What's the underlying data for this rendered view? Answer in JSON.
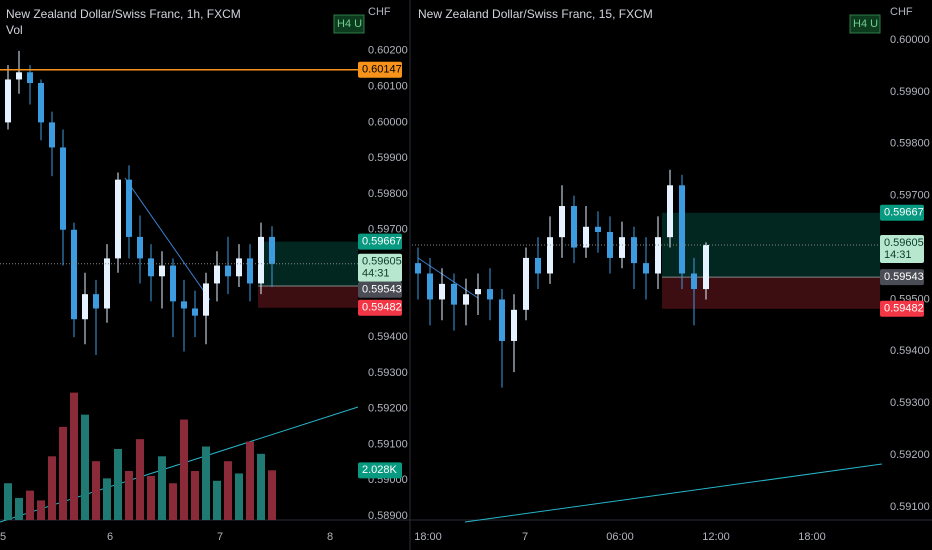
{
  "chart_data": [
    {
      "type": "candlestick",
      "title": "New Zealand Dollar/Swiss Franc, 1h, FXCM",
      "indicator": "Vol",
      "y_label": "CHF",
      "button": "H4 U",
      "ylim": [
        0.58889,
        0.60342
      ],
      "yticks": [
        {
          "value": 0.589,
          "label": "0.58900"
        },
        {
          "value": 0.59,
          "label": "0.59000"
        },
        {
          "value": 0.591,
          "label": "0.59100"
        },
        {
          "value": 0.592,
          "label": "0.59200"
        },
        {
          "value": 0.593,
          "label": "0.59300"
        },
        {
          "value": 0.594,
          "label": "0.59400"
        },
        {
          "value": 0.597,
          "label": "0.59700"
        },
        {
          "value": 0.598,
          "label": "0.59800"
        },
        {
          "value": 0.599,
          "label": "0.59900"
        },
        {
          "value": 0.6,
          "label": "0.60000"
        },
        {
          "value": 0.601,
          "label": "0.60100"
        },
        {
          "value": 0.602,
          "label": "0.60200"
        }
      ],
      "x_labels": [
        "5",
        "6",
        "7",
        "8"
      ],
      "up_color": "#e6f2ff",
      "down_color": "#3d9be0",
      "open": [
        0.6,
        0.6012,
        0.6014,
        0.6011,
        0.6,
        0.5993,
        0.597,
        0.5945,
        0.5952,
        0.5948,
        0.5962,
        0.5984,
        0.5968,
        0.5962,
        0.5957,
        0.596,
        0.595,
        0.5948,
        0.5946,
        0.5955,
        0.596,
        0.5957,
        0.5962,
        0.5955,
        0.5968
      ],
      "close": [
        0.6012,
        0.6014,
        0.6011,
        0.6,
        0.5993,
        0.597,
        0.5945,
        0.5952,
        0.5948,
        0.5962,
        0.5984,
        0.5968,
        0.5962,
        0.5957,
        0.596,
        0.595,
        0.5948,
        0.5946,
        0.5955,
        0.596,
        0.5957,
        0.5962,
        0.5955,
        0.5968,
        0.59605
      ],
      "high": [
        0.6016,
        0.602,
        0.6016,
        0.6012,
        0.6003,
        0.5998,
        0.5972,
        0.5958,
        0.5956,
        0.5966,
        0.5986,
        0.5988,
        0.5974,
        0.5966,
        0.5964,
        0.5962,
        0.5956,
        0.5953,
        0.5958,
        0.5964,
        0.5968,
        0.5966,
        0.5966,
        0.5972,
        0.5971
      ],
      "low": [
        0.5998,
        0.6008,
        0.6005,
        0.5995,
        0.5985,
        0.596,
        0.594,
        0.5938,
        0.5935,
        0.5944,
        0.5958,
        0.5962,
        0.5955,
        0.595,
        0.5948,
        0.594,
        0.5936,
        0.594,
        0.5938,
        0.595,
        0.5952,
        0.5954,
        0.595,
        0.5952,
        0.5954
      ],
      "volume": {
        "values": [
          1500,
          900,
          1200,
          800,
          2600,
          3800,
          5200,
          4300,
          2400,
          1700,
          2900,
          2000,
          3300,
          1800,
          2600,
          1500,
          4100,
          2000,
          3000,
          1600,
          2400,
          1900,
          3200,
          2700,
          2028
        ],
        "vlim": [
          0,
          6000
        ],
        "last_label": "2.028K",
        "up_color": "#1f7a73",
        "down_color": "#8b2b3a"
      },
      "levels": [
        {
          "value": 0.60147,
          "kind": "line",
          "color": "#f7931a"
        },
        {
          "value": 0.59667,
          "kind": "target",
          "color": "#089981"
        },
        {
          "value": 0.59543,
          "kind": "entry",
          "color": "#4a4d55"
        },
        {
          "value": 0.59482,
          "kind": "stop",
          "color": "#f23645"
        }
      ],
      "last_price": {
        "value": 0.59605,
        "countdown": "44:31"
      }
    },
    {
      "type": "candlestick",
      "title": "New Zealand Dollar/Swiss Franc, 15, FXCM",
      "y_label": "CHF",
      "button": "H4 U",
      "ylim": [
        0.59075,
        0.60077
      ],
      "yticks": [
        {
          "value": 0.591,
          "label": "0.59100"
        },
        {
          "value": 0.592,
          "label": "0.59200"
        },
        {
          "value": 0.593,
          "label": "0.59300"
        },
        {
          "value": 0.594,
          "label": "0.59400"
        },
        {
          "value": 0.595,
          "label": "0.59500"
        },
        {
          "value": 0.597,
          "label": "0.59700"
        },
        {
          "value": 0.598,
          "label": "0.59800"
        },
        {
          "value": 0.599,
          "label": "0.59900"
        },
        {
          "value": 0.6,
          "label": "0.60000"
        }
      ],
      "x_labels": [
        "18:00",
        "7",
        "06:00",
        "12:00",
        "18:00"
      ],
      "up_color": "#e6f2ff",
      "down_color": "#3d9be0",
      "open": [
        0.5957,
        0.5955,
        0.595,
        0.5953,
        0.5949,
        0.5951,
        0.5952,
        0.595,
        0.5942,
        0.5948,
        0.5958,
        0.5955,
        0.5962,
        0.5968,
        0.596,
        0.5964,
        0.5963,
        0.5958,
        0.5962,
        0.5957,
        0.5955,
        0.5962,
        0.5972,
        0.5955,
        0.5952
      ],
      "close": [
        0.5955,
        0.595,
        0.5953,
        0.5949,
        0.5951,
        0.5952,
        0.595,
        0.5942,
        0.5948,
        0.5958,
        0.5955,
        0.5962,
        0.5968,
        0.596,
        0.5964,
        0.5963,
        0.5958,
        0.5962,
        0.5957,
        0.5955,
        0.5962,
        0.5972,
        0.5955,
        0.5952,
        0.59605
      ],
      "high": [
        0.596,
        0.5958,
        0.5956,
        0.5955,
        0.5954,
        0.5955,
        0.5956,
        0.5952,
        0.5951,
        0.596,
        0.5962,
        0.5966,
        0.5972,
        0.597,
        0.5968,
        0.5967,
        0.5966,
        0.5965,
        0.5964,
        0.5962,
        0.5966,
        0.5975,
        0.5974,
        0.5958,
        0.5961
      ],
      "low": [
        0.595,
        0.5945,
        0.5946,
        0.5944,
        0.5945,
        0.5947,
        0.5946,
        0.5933,
        0.5936,
        0.5946,
        0.5952,
        0.5953,
        0.5958,
        0.5957,
        0.5958,
        0.5959,
        0.5955,
        0.5956,
        0.5952,
        0.595,
        0.5952,
        0.596,
        0.5952,
        0.5945,
        0.595
      ],
      "levels": [
        {
          "value": 0.59667,
          "kind": "target",
          "color": "#089981"
        },
        {
          "value": 0.59543,
          "kind": "entry",
          "color": "#4a4d55"
        },
        {
          "value": 0.59482,
          "kind": "stop",
          "color": "#f23645"
        }
      ],
      "last_price": {
        "value": 0.59605,
        "countdown": "14:31"
      }
    }
  ]
}
